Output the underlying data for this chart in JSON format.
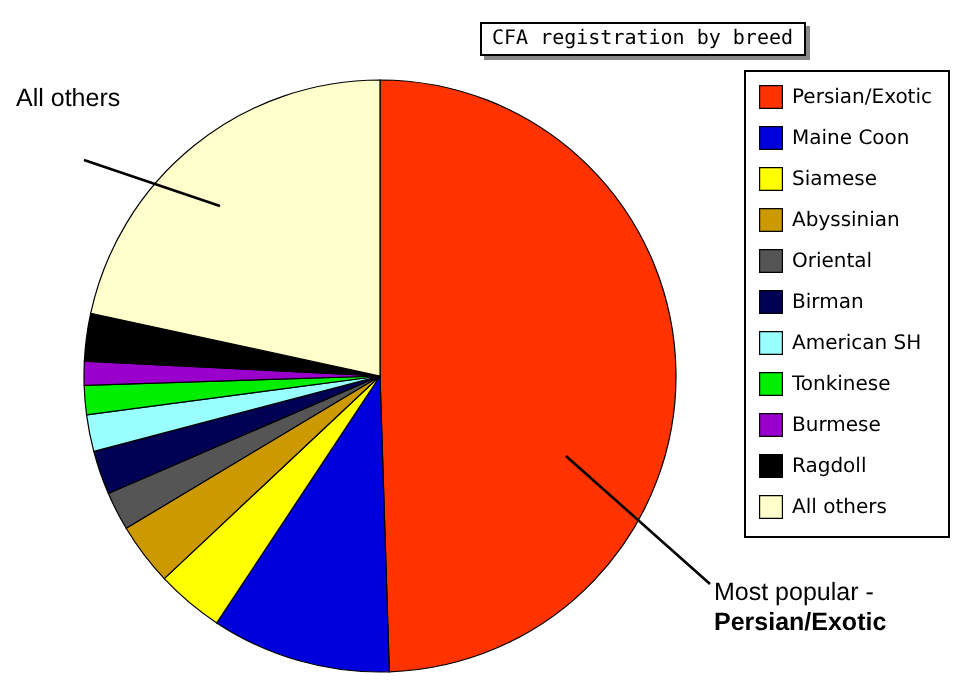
{
  "chart_data": {
    "type": "pie",
    "title": "CFA registration by breed",
    "categories": [
      "Persian/Exotic",
      "Maine Coon",
      "Siamese",
      "Abyssinian",
      "Oriental",
      "Birman",
      "American SH",
      "Tonkinese",
      "Burmese",
      "Ragdoll",
      "All others"
    ],
    "values": [
      49.5,
      9.8,
      3.7,
      3.4,
      2.1,
      2.4,
      2.0,
      1.6,
      1.3,
      2.6,
      21.6
    ],
    "colors": [
      "#ff3300",
      "#0000dd",
      "#ffff00",
      "#cc9900",
      "#555555",
      "#000055",
      "#99ffff",
      "#00ee00",
      "#9900cc",
      "#000000",
      "#ffffcc"
    ],
    "legend": "right",
    "annotations": [
      "All others",
      "Most popular -",
      "Persian/Exotic"
    ]
  }
}
